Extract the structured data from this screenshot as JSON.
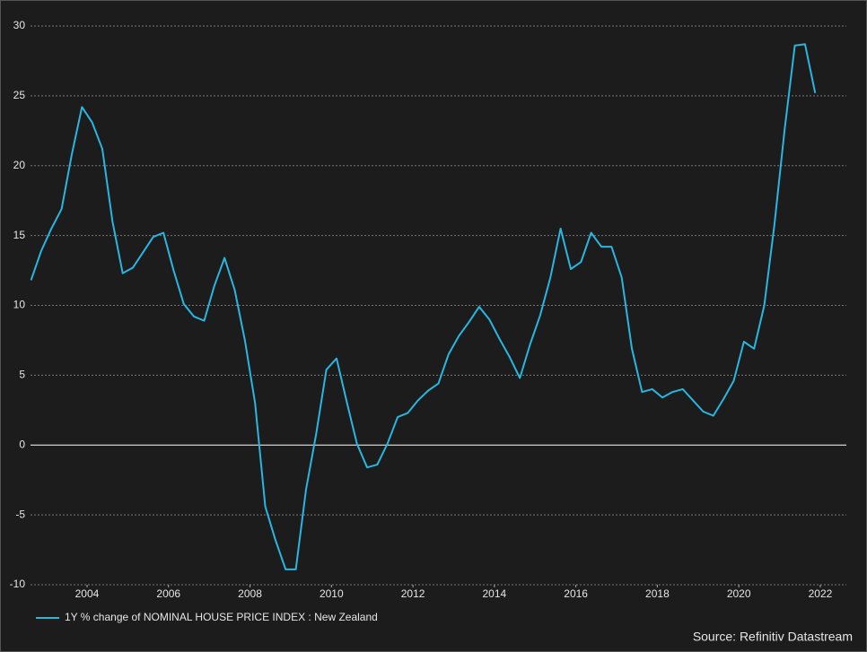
{
  "chart_data": {
    "type": "line",
    "legend": "1Y % change of NOMINAL HOUSE PRICE INDEX : New Zealand",
    "source": "Source: Refinitiv Datastream",
    "x": [
      2002.625,
      2002.875,
      2003.125,
      2003.375,
      2003.625,
      2003.875,
      2004.125,
      2004.375,
      2004.625,
      2004.875,
      2005.125,
      2005.375,
      2005.625,
      2005.875,
      2006.125,
      2006.375,
      2006.625,
      2006.875,
      2007.125,
      2007.375,
      2007.625,
      2007.875,
      2008.125,
      2008.375,
      2008.625,
      2008.875,
      2009.125,
      2009.375,
      2009.625,
      2009.875,
      2010.125,
      2010.375,
      2010.625,
      2010.875,
      2011.125,
      2011.375,
      2011.625,
      2011.875,
      2012.125,
      2012.375,
      2012.625,
      2012.875,
      2013.125,
      2013.375,
      2013.625,
      2013.875,
      2014.125,
      2014.375,
      2014.625,
      2014.875,
      2015.125,
      2015.375,
      2015.625,
      2015.875,
      2016.125,
      2016.375,
      2016.625,
      2016.875,
      2017.125,
      2017.375,
      2017.625,
      2017.875,
      2018.125,
      2018.375,
      2018.625,
      2018.875,
      2019.125,
      2019.375,
      2019.625,
      2019.875,
      2020.125,
      2020.375,
      2020.625,
      2020.875,
      2021.125,
      2021.375,
      2021.625,
      2021.875
    ],
    "series": [
      {
        "name": "1Y % change of NOMINAL HOUSE PRICE INDEX : New Zealand",
        "color": "#29b6e0",
        "values": [
          11.8,
          13.9,
          15.5,
          16.9,
          20.8,
          24.2,
          23.1,
          21.2,
          16.0,
          12.3,
          12.7,
          13.8,
          14.9,
          15.2,
          12.5,
          10.1,
          9.2,
          8.9,
          11.4,
          13.4,
          11.1,
          7.5,
          3.0,
          -4.4,
          -6.8,
          -8.9,
          -8.9,
          -3.2,
          0.8,
          5.4,
          6.2,
          3.1,
          0.1,
          -1.6,
          -1.4,
          0.1,
          2.0,
          2.3,
          3.2,
          3.9,
          4.4,
          6.5,
          7.8,
          8.8,
          9.9,
          9.0,
          7.6,
          6.3,
          4.8,
          7.2,
          9.3,
          12.0,
          15.5,
          12.6,
          13.1,
          15.2,
          14.2,
          14.2,
          12.0,
          6.9,
          3.8,
          4.0,
          3.4,
          3.8,
          4.0,
          3.2,
          2.4,
          2.1,
          3.3,
          4.6,
          7.4,
          6.9,
          10.0,
          15.8,
          22.6,
          28.6,
          28.7,
          25.2
        ]
      }
    ],
    "xlim": [
      2002.48,
      2022.64
    ],
    "xticks": [
      2004,
      2006,
      2008,
      2010,
      2012,
      2014,
      2016,
      2018,
      2020,
      2022
    ],
    "ylim": [
      -10,
      30
    ],
    "yticks": [
      -10,
      -5,
      0,
      5,
      10,
      15,
      20,
      25,
      30
    ],
    "grid": true,
    "zero_line": true
  }
}
